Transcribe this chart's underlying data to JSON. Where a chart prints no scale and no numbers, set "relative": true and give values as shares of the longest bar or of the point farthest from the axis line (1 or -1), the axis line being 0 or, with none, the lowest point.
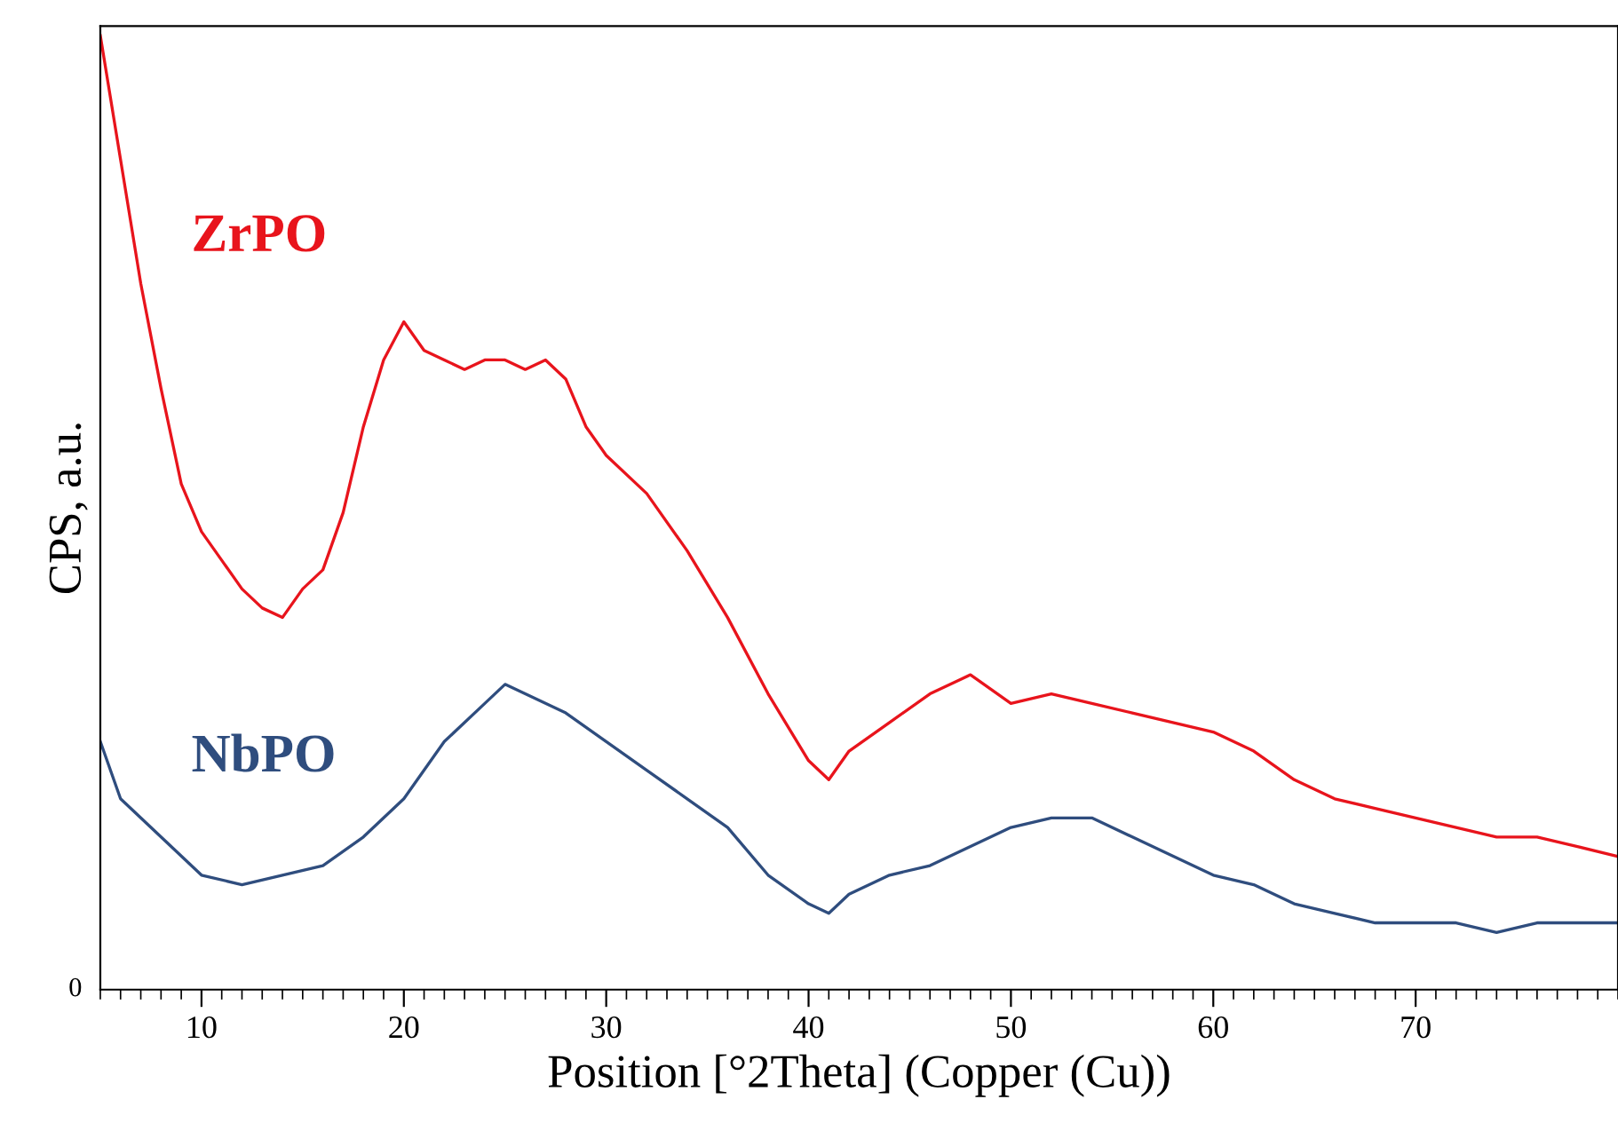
{
  "chart_data": {
    "type": "line",
    "relative": true,
    "xlabel": "Position [°2Theta] (Copper (Cu))",
    "ylabel": "CPS, a.u.",
    "xlim": [
      5,
      80
    ],
    "xticks": [
      10,
      20,
      30,
      40,
      50,
      60,
      70
    ],
    "annotations": [
      "0"
    ],
    "grid": false,
    "marker": "none",
    "line_style": "solid",
    "series": [
      {
        "name": "ZrPO",
        "color": "#e8141c",
        "x": [
          5,
          6,
          7,
          8,
          9,
          10,
          11,
          12,
          13,
          14,
          15,
          16,
          17,
          18,
          19,
          20,
          21,
          22,
          23,
          24,
          25,
          26,
          27,
          28,
          29,
          30,
          32,
          34,
          36,
          38,
          40,
          41,
          42,
          44,
          46,
          48,
          50,
          52,
          54,
          56,
          58,
          60,
          62,
          64,
          66,
          68,
          70,
          72,
          74,
          76,
          78,
          79.9
        ],
        "values": [
          1.0,
          0.87,
          0.74,
          0.63,
          0.53,
          0.48,
          0.45,
          0.42,
          0.4,
          0.39,
          0.42,
          0.44,
          0.5,
          0.59,
          0.66,
          0.7,
          0.67,
          0.66,
          0.65,
          0.66,
          0.66,
          0.65,
          0.66,
          0.64,
          0.59,
          0.56,
          0.52,
          0.46,
          0.39,
          0.31,
          0.24,
          0.22,
          0.25,
          0.28,
          0.31,
          0.33,
          0.3,
          0.31,
          0.3,
          0.29,
          0.28,
          0.27,
          0.25,
          0.22,
          0.2,
          0.19,
          0.18,
          0.17,
          0.16,
          0.16,
          0.15,
          0.14
        ]
      },
      {
        "name": "NbPO",
        "color": "#2f4d7e",
        "x": [
          5,
          6,
          8,
          10,
          12,
          14,
          16,
          18,
          20,
          22,
          24,
          25,
          26,
          28,
          30,
          32,
          34,
          36,
          38,
          40,
          41,
          42,
          44,
          46,
          48,
          50,
          52,
          54,
          56,
          58,
          60,
          62,
          64,
          66,
          68,
          70,
          72,
          74,
          76,
          78,
          79.9
        ],
        "values": [
          0.26,
          0.2,
          0.16,
          0.12,
          0.11,
          0.12,
          0.13,
          0.16,
          0.2,
          0.26,
          0.3,
          0.32,
          0.31,
          0.29,
          0.26,
          0.23,
          0.2,
          0.17,
          0.12,
          0.09,
          0.08,
          0.1,
          0.12,
          0.13,
          0.15,
          0.17,
          0.18,
          0.18,
          0.16,
          0.14,
          0.12,
          0.11,
          0.09,
          0.08,
          0.07,
          0.07,
          0.07,
          0.06,
          0.07,
          0.07,
          0.07
        ]
      }
    ]
  }
}
